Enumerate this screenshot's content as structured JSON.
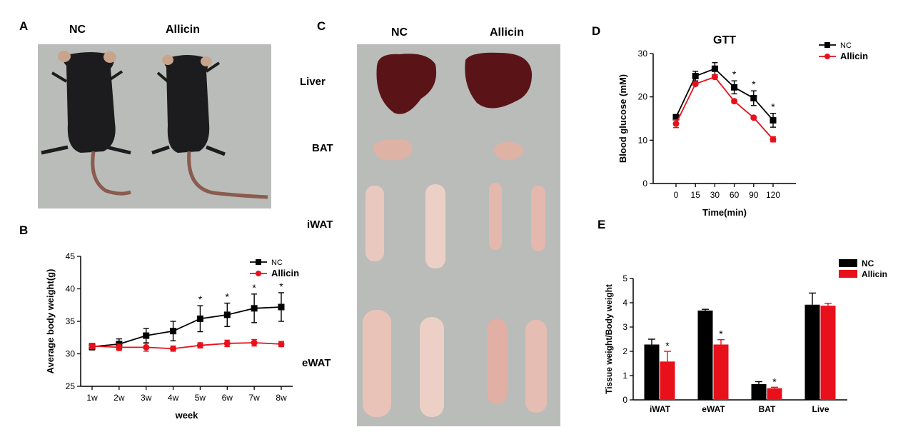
{
  "panels": {
    "A": {
      "letter": "A",
      "groups": [
        "NC",
        "Allicin"
      ]
    },
    "B": {
      "letter": "B"
    },
    "C": {
      "letter": "C",
      "groups": [
        "NC",
        "Allicin"
      ],
      "tissues": [
        "Liver",
        "BAT",
        "iWAT",
        "eWAT"
      ]
    },
    "D": {
      "letter": "D"
    },
    "E": {
      "letter": "E"
    }
  },
  "colors": {
    "nc": "#000000",
    "allicin": "#e8111b",
    "photo_bg": "#b9bcb8",
    "fur": "#1c1c1e",
    "liver": "#5a1418",
    "fat": "#e9c9bf"
  },
  "chart_data": [
    {
      "id": "B",
      "type": "line",
      "title": "",
      "xlabel": "week",
      "ylabel": "Average body weight(g)",
      "categories": [
        "1w",
        "2w",
        "3w",
        "4w",
        "5w",
        "6w",
        "7w",
        "8w"
      ],
      "ylim": [
        25,
        45
      ],
      "yticks": [
        25,
        30,
        35,
        40,
        45
      ],
      "series": [
        {
          "name": "NC",
          "color": "#000000",
          "marker": "square",
          "values": [
            31.1,
            31.5,
            32.8,
            33.5,
            35.4,
            36.0,
            37.0,
            37.2
          ],
          "errors": [
            0.5,
            0.8,
            1.1,
            1.5,
            2.0,
            1.8,
            2.2,
            2.2
          ]
        },
        {
          "name": "Allicin",
          "color": "#e8111b",
          "marker": "circle",
          "values": [
            31.2,
            31.0,
            31.0,
            30.8,
            31.3,
            31.6,
            31.7,
            31.5
          ],
          "errors": [
            0.4,
            0.5,
            0.6,
            0.4,
            0.4,
            0.5,
            0.5,
            0.4
          ]
        }
      ],
      "significance": [
        {
          "category": "5w",
          "label": "*"
        },
        {
          "category": "6w",
          "label": "*"
        },
        {
          "category": "7w",
          "label": "*"
        },
        {
          "category": "8w",
          "label": "*"
        }
      ],
      "legend_position": "top-right"
    },
    {
      "id": "D",
      "type": "line",
      "title": "GTT",
      "xlabel": "Time(min)",
      "ylabel": "Blood glucose (mM)",
      "categories": [
        "0",
        "15",
        "30",
        "60",
        "90",
        "120"
      ],
      "ylim": [
        0,
        30
      ],
      "yticks": [
        0,
        10,
        20,
        30
      ],
      "series": [
        {
          "name": "NC",
          "color": "#000000",
          "marker": "square",
          "values": [
            15.3,
            24.8,
            26.5,
            22.2,
            19.7,
            14.6
          ],
          "errors": [
            0.6,
            1.1,
            1.4,
            1.5,
            1.7,
            1.6
          ]
        },
        {
          "name": "Allicin",
          "color": "#e8111b",
          "marker": "circle",
          "values": [
            13.8,
            23.0,
            24.6,
            19.0,
            15.2,
            10.2
          ],
          "errors": [
            0.9,
            0.4,
            0.4,
            0.4,
            0.3,
            0.6
          ]
        }
      ],
      "significance": [
        {
          "category": "60",
          "label": "*"
        },
        {
          "category": "90",
          "label": "*"
        },
        {
          "category": "120",
          "label": "*"
        }
      ],
      "legend_position": "top-right"
    },
    {
      "id": "E",
      "type": "bar",
      "title": "",
      "xlabel": "",
      "ylabel": "Tissue weight/Body weight",
      "categories": [
        "iWAT",
        "eWAT",
        "BAT",
        "Live"
      ],
      "ylim": [
        0,
        5
      ],
      "yticks": [
        0,
        1,
        2,
        3,
        4,
        5
      ],
      "series": [
        {
          "name": "NC",
          "color": "#000000",
          "values": [
            2.28,
            3.68,
            0.65,
            3.92
          ],
          "errors": [
            0.22,
            0.05,
            0.1,
            0.48
          ]
        },
        {
          "name": "Allicin",
          "color": "#e8111b",
          "values": [
            1.58,
            2.28,
            0.48,
            3.88
          ],
          "errors": [
            0.42,
            0.2,
            0.04,
            0.1
          ]
        }
      ],
      "significance": [
        {
          "category": "iWAT",
          "series": "Allicin",
          "label": "*"
        },
        {
          "category": "eWAT",
          "series": "Allicin",
          "label": "*"
        },
        {
          "category": "BAT",
          "series": "Allicin",
          "label": "*"
        }
      ],
      "legend_position": "top-right"
    }
  ]
}
